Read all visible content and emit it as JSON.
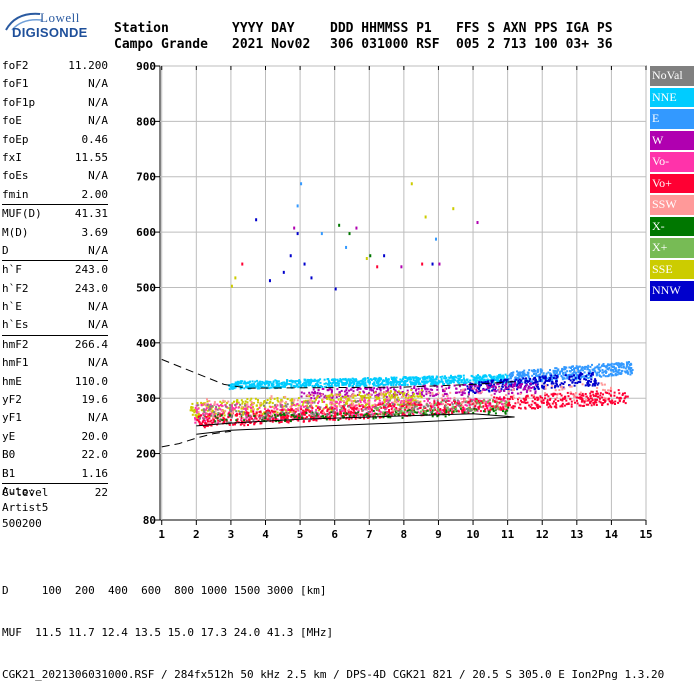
{
  "logo": {
    "line1": "Lowell",
    "line2": "DIGISONDE"
  },
  "header": {
    "labels": [
      "Station",
      "YYYY DAY",
      "DDD HHMMSS P1",
      "FFS S AXN PPS IGA PS"
    ],
    "values": [
      "Campo Grande",
      "2021 Nov02",
      "306 031000 RSF",
      "005 2 713 100 03+ 36"
    ]
  },
  "params": [
    [
      {
        "label": "foF2",
        "value": "11.200"
      },
      {
        "label": "foF1",
        "value": "N/A"
      },
      {
        "label": "foF1p",
        "value": "N/A"
      },
      {
        "label": "foE",
        "value": "N/A"
      },
      {
        "label": "foEp",
        "value": "0.46"
      },
      {
        "label": "fxI",
        "value": "11.55"
      },
      {
        "label": "foEs",
        "value": "N/A"
      },
      {
        "label": "fmin",
        "value": "2.00"
      }
    ],
    [
      {
        "label": "MUF(D)",
        "value": "41.31"
      },
      {
        "label": "M(D)",
        "value": "3.69"
      },
      {
        "label": "D",
        "value": "N/A"
      }
    ],
    [
      {
        "label": "h`F",
        "value": "243.0"
      },
      {
        "label": "h`F2",
        "value": "243.0"
      },
      {
        "label": "h`E",
        "value": "N/A"
      },
      {
        "label": "h`Es",
        "value": "N/A"
      }
    ],
    [
      {
        "label": "hmF2",
        "value": "266.4"
      },
      {
        "label": "hmF1",
        "value": "N/A"
      },
      {
        "label": "hmE",
        "value": "110.0"
      },
      {
        "label": "yF2",
        "value": "19.6"
      },
      {
        "label": "yF1",
        "value": "N/A"
      },
      {
        "label": "yE",
        "value": "20.0"
      },
      {
        "label": "B0",
        "value": "22.0"
      },
      {
        "label": "B1",
        "value": "1.16"
      }
    ],
    [
      {
        "label": "C-level",
        "value": "22"
      }
    ]
  ],
  "auto": {
    "line1": "Auto:",
    "line2": "Artist5",
    "line3": "500200"
  },
  "legend": [
    {
      "label": "NoVal",
      "color": "#808080"
    },
    {
      "label": "NNE",
      "color": "#00ccff"
    },
    {
      "label": "E",
      "color": "#3399ff"
    },
    {
      "label": "W",
      "color": "#b000b0"
    },
    {
      "label": "Vo-",
      "color": "#ff33aa"
    },
    {
      "label": "Vo+",
      "color": "#ff0033"
    },
    {
      "label": "SSW",
      "color": "#ff9999"
    },
    {
      "label": "X-",
      "color": "#007700"
    },
    {
      "label": "X+",
      "color": "#77bb55"
    },
    {
      "label": "SSE",
      "color": "#cccc00"
    },
    {
      "label": "NNW",
      "color": "#0000cc"
    }
  ],
  "footer": {
    "d_row": "D     100  200  400  600  800 1000 1500 3000 [km]",
    "muf_row": "MUF  11.5 11.7 12.4 13.5 15.0 17.3 24.0 41.3 [MHz]",
    "info_row": "CGK21_2021306031000.RSF / 284fx512h 50 kHz 2.5 km / DPS-4D CGK21 821 / 20.5 S 305.0 E Ion2Png 1.3.20"
  },
  "chart_data": {
    "type": "scatter",
    "title": "",
    "xlabel": "",
    "ylabel": "",
    "xlim": [
      0.95,
      15
    ],
    "ylim": [
      80,
      900
    ],
    "x_ticks": [
      "1",
      "2",
      "3",
      "4",
      "5",
      "6",
      "7",
      "8",
      "9",
      "10",
      "11",
      "12",
      "13",
      "14",
      "15"
    ],
    "y_ticks": [
      "80",
      "200",
      "300",
      "400",
      "500",
      "600",
      "700",
      "800",
      "900"
    ],
    "grid": true,
    "bands": [
      {
        "name": "NNE",
        "color": "#00ccff",
        "x": [
          2.9,
          11.0
        ],
        "y_start": [
          318,
          332
        ],
        "y_end": [
          330,
          345
        ],
        "count": 900
      },
      {
        "name": "E",
        "color": "#3399ff",
        "x": [
          11.0,
          14.6
        ],
        "y_start": [
          325,
          350
        ],
        "y_end": [
          345,
          368
        ],
        "count": 420
      },
      {
        "name": "NNW",
        "color": "#0000cc",
        "x": [
          9.8,
          13.6
        ],
        "y_start": [
          310,
          330
        ],
        "y_end": [
          325,
          350
        ],
        "count": 260
      },
      {
        "name": "W",
        "color": "#b000b0",
        "x": [
          5.0,
          11.8
        ],
        "y_start": [
          300,
          318
        ],
        "y_end": [
          310,
          330
        ],
        "count": 300
      },
      {
        "name": "SSE",
        "color": "#cccc00",
        "x": [
          1.8,
          8.5
        ],
        "y_start": [
          265,
          295
        ],
        "y_end": [
          290,
          318
        ],
        "count": 450
      },
      {
        "name": "Vo-",
        "color": "#ff33aa",
        "x": [
          1.9,
          11.0
        ],
        "y_start": [
          255,
          290
        ],
        "y_end": [
          280,
          305
        ],
        "count": 450
      },
      {
        "name": "Vo+",
        "color": "#ff0033",
        "x": [
          2.0,
          14.5
        ],
        "y_start": [
          248,
          272
        ],
        "y_end": [
          292,
          318
        ],
        "count": 900
      },
      {
        "name": "X-",
        "color": "#007700",
        "x": [
          2.5,
          11.0
        ],
        "y_start": [
          255,
          272
        ],
        "y_end": [
          272,
          285
        ],
        "count": 160
      },
      {
        "name": "X+",
        "color": "#77bb55",
        "x": [
          7.0,
          11.0
        ],
        "y_start": [
          270,
          290
        ],
        "y_end": [
          282,
          300
        ],
        "count": 90
      },
      {
        "name": "SSW",
        "color": "#ff9999",
        "x": [
          2.0,
          14.0
        ],
        "y_start": [
          260,
          300
        ],
        "y_end": [
          300,
          330
        ],
        "count": 200
      },
      {
        "name": "NoVal",
        "color": "#808080",
        "x": [
          2.0,
          10.0
        ],
        "y_start": [
          255,
          290
        ],
        "y_end": [
          275,
          305
        ],
        "count": 150
      }
    ],
    "scattered": [
      {
        "name": "NNW",
        "color": "#0000cc",
        "points": [
          [
            3.7,
            625
          ],
          [
            4.9,
            600
          ],
          [
            4.7,
            560
          ],
          [
            5.1,
            545
          ],
          [
            4.5,
            530
          ],
          [
            5.3,
            520
          ],
          [
            7.4,
            560
          ],
          [
            8.8,
            545
          ],
          [
            6.0,
            500
          ],
          [
            4.1,
            515
          ]
        ]
      },
      {
        "name": "E",
        "color": "#3399ff",
        "points": [
          [
            4.9,
            650
          ],
          [
            5.0,
            690
          ],
          [
            5.6,
            600
          ],
          [
            6.3,
            575
          ],
          [
            8.9,
            590
          ]
        ]
      },
      {
        "name": "W",
        "color": "#b000b0",
        "points": [
          [
            4.8,
            610
          ],
          [
            6.6,
            610
          ],
          [
            9.0,
            545
          ],
          [
            7.9,
            540
          ],
          [
            10.1,
            620
          ]
        ]
      },
      {
        "name": "SSE",
        "color": "#cccc00",
        "points": [
          [
            3.0,
            505
          ],
          [
            8.6,
            630
          ],
          [
            9.4,
            645
          ],
          [
            8.2,
            690
          ],
          [
            3.1,
            520
          ],
          [
            6.9,
            555
          ]
        ]
      },
      {
        "name": "Vo+",
        "color": "#ff0033",
        "points": [
          [
            3.3,
            545
          ],
          [
            7.2,
            540
          ],
          [
            8.5,
            545
          ]
        ]
      },
      {
        "name": "X-",
        "color": "#007700",
        "points": [
          [
            6.1,
            615
          ],
          [
            7.0,
            560
          ],
          [
            6.4,
            600
          ]
        ]
      }
    ],
    "fit_curves": [
      {
        "style": "solid",
        "points": [
          [
            2.0,
            235
          ],
          [
            3.0,
            242
          ],
          [
            5.0,
            248
          ],
          [
            8.0,
            256
          ],
          [
            10.0,
            262
          ],
          [
            11.2,
            266
          ],
          [
            10.0,
            272
          ],
          [
            8.0,
            268
          ],
          [
            5.0,
            262
          ],
          [
            3.0,
            255
          ],
          [
            2.0,
            250
          ]
        ]
      },
      {
        "style": "dashed",
        "points": [
          [
            1.0,
            370
          ],
          [
            2.0,
            345
          ],
          [
            2.8,
            325
          ],
          [
            3.5,
            318
          ],
          [
            8.0,
            320
          ],
          [
            10.0,
            325
          ],
          [
            11.2,
            330
          ]
        ]
      },
      {
        "style": "dashed",
        "points": [
          [
            1.0,
            212
          ],
          [
            1.5,
            218
          ],
          [
            2.0,
            228
          ],
          [
            2.5,
            236
          ],
          [
            3.0,
            240
          ]
        ]
      }
    ]
  }
}
